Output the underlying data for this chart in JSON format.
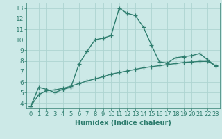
{
  "line1_x": [
    0,
    1,
    2,
    3,
    4,
    5,
    6,
    7,
    8,
    9,
    10,
    11,
    12,
    13,
    14,
    15,
    16,
    17,
    18,
    19,
    20,
    21,
    22,
    23
  ],
  "line1_y": [
    3.7,
    5.5,
    5.3,
    5.0,
    5.3,
    5.5,
    7.7,
    8.9,
    10.0,
    10.15,
    10.4,
    13.0,
    12.5,
    12.3,
    11.2,
    9.5,
    7.9,
    7.8,
    8.3,
    8.4,
    8.5,
    8.7,
    8.1,
    7.5
  ],
  "line2_x": [
    0,
    1,
    2,
    3,
    4,
    5,
    6,
    7,
    8,
    9,
    10,
    11,
    12,
    13,
    14,
    15,
    16,
    17,
    18,
    19,
    20,
    21,
    22,
    23
  ],
  "line2_y": [
    3.7,
    4.8,
    5.2,
    5.25,
    5.4,
    5.6,
    5.85,
    6.1,
    6.3,
    6.5,
    6.75,
    6.9,
    7.05,
    7.2,
    7.35,
    7.45,
    7.55,
    7.65,
    7.75,
    7.85,
    7.9,
    7.95,
    7.95,
    7.55
  ],
  "line_color": "#2e7d6e",
  "bg_color": "#cce9e7",
  "grid_color": "#aed4d1",
  "xlabel": "Humidex (Indice chaleur)",
  "xlim": [
    -0.5,
    23.5
  ],
  "ylim": [
    3.5,
    13.5
  ],
  "yticks": [
    4,
    5,
    6,
    7,
    8,
    9,
    10,
    11,
    12,
    13
  ],
  "xticks": [
    0,
    1,
    2,
    3,
    4,
    5,
    6,
    7,
    8,
    9,
    10,
    11,
    12,
    13,
    14,
    15,
    16,
    17,
    18,
    19,
    20,
    21,
    22,
    23
  ],
  "marker": "+",
  "markersize": 4,
  "linewidth": 1.0,
  "xlabel_fontsize": 7,
  "tick_fontsize": 6.5
}
